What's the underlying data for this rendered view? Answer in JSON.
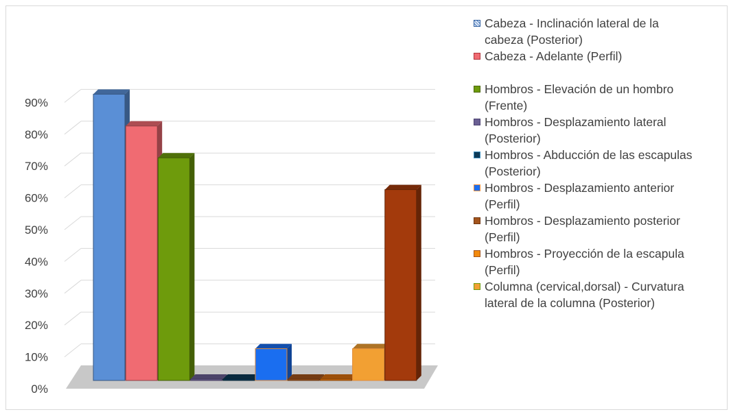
{
  "chart_data": {
    "type": "bar",
    "subtype": "3d-clustered-column",
    "categories": [
      "Cabeza - Inclinación lateral de la cabeza (Posterior)",
      "Cabeza - Adelante (Perfil)",
      "Hombros - Elevación de un hombro (Frente)",
      "Hombros - Desplazamiento lateral (Posterior)",
      "Hombros - Abducción de las escapulas (Posterior)",
      "Hombros - Desplazamiento anterior (Perfil)",
      "Hombros - Desplazamiento posterior (Perfil)",
      "Hombros - Proyección de la escapula (Perfil)",
      "Columna (cervical,dorsal) - Curvatura lateral de la columna (Posterior)",
      ""
    ],
    "values": [
      90,
      80,
      70,
      0,
      0,
      10,
      0,
      0,
      10,
      60
    ],
    "colors": [
      "#5a8fd6",
      "#f06b72",
      "#6e9b0c",
      "#6a5f93",
      "#0d3a57",
      "#1a6ef0",
      "#a3541c",
      "#d96f0e",
      "#f2a033",
      "#a33a0c"
    ],
    "ylim": [
      0,
      90
    ],
    "yticks": [
      "0%",
      "10%",
      "20%",
      "30%",
      "40%",
      "50%",
      "60%",
      "70%",
      "80%",
      "90%"
    ],
    "grid": true,
    "legend_position": "right",
    "legend": [
      {
        "lines": [
          "Cabeza - Inclinación lateral de la",
          "cabeza (Posterior)"
        ],
        "color": "#5a8fd6",
        "swatch_border": "#2e5d9e",
        "pattern": true,
        "gap_after": false
      },
      {
        "lines": [
          "Cabeza - Adelante (Perfil)"
        ],
        "color": "#f06b72",
        "swatch_border": "#b0333a",
        "pattern": false,
        "gap_after": true
      },
      {
        "lines": [
          "Hombros - Elevación de un hombro",
          "(Frente)"
        ],
        "color": "#6e9b0c",
        "swatch_border": "#486507",
        "pattern": false,
        "gap_after": false
      },
      {
        "lines": [
          "Hombros - Desplazamiento lateral",
          "(Posterior)"
        ],
        "color": "#6a5f93",
        "swatch_border": "#4a4070",
        "pattern": false,
        "gap_after": false
      },
      {
        "lines": [
          "Hombros - Abducción de las escapulas",
          "(Posterior)"
        ],
        "color": "#0d3a57",
        "swatch_border": "#3a8fc0",
        "pattern": false,
        "gap_after": false
      },
      {
        "lines": [
          "Hombros - Desplazamiento anterior",
          "(Perfil)"
        ],
        "color": "#1a6ef0",
        "swatch_border": "#f0903a",
        "pattern": false,
        "gap_after": false
      },
      {
        "lines": [
          "Hombros - Desplazamiento posterior",
          "(Perfil)"
        ],
        "color": "#a3541c",
        "swatch_border": "#6e3510",
        "pattern": false,
        "gap_after": false
      },
      {
        "lines": [
          "Hombros - Proyección de la escapula",
          "(Perfil)"
        ],
        "color": "#f28a0e",
        "swatch_border": "#a3541c",
        "pattern": false,
        "gap_after": false
      },
      {
        "lines": [
          "Columna (cervical,dorsal) - Curvatura",
          "lateral de la columna (Posterior)"
        ],
        "color": "#f2a033",
        "swatch_border": "#6e9b0c",
        "pattern": false,
        "gap_after": false
      }
    ],
    "floor_color": "#c8c8c8",
    "grid_color": "#d9d9d9"
  }
}
